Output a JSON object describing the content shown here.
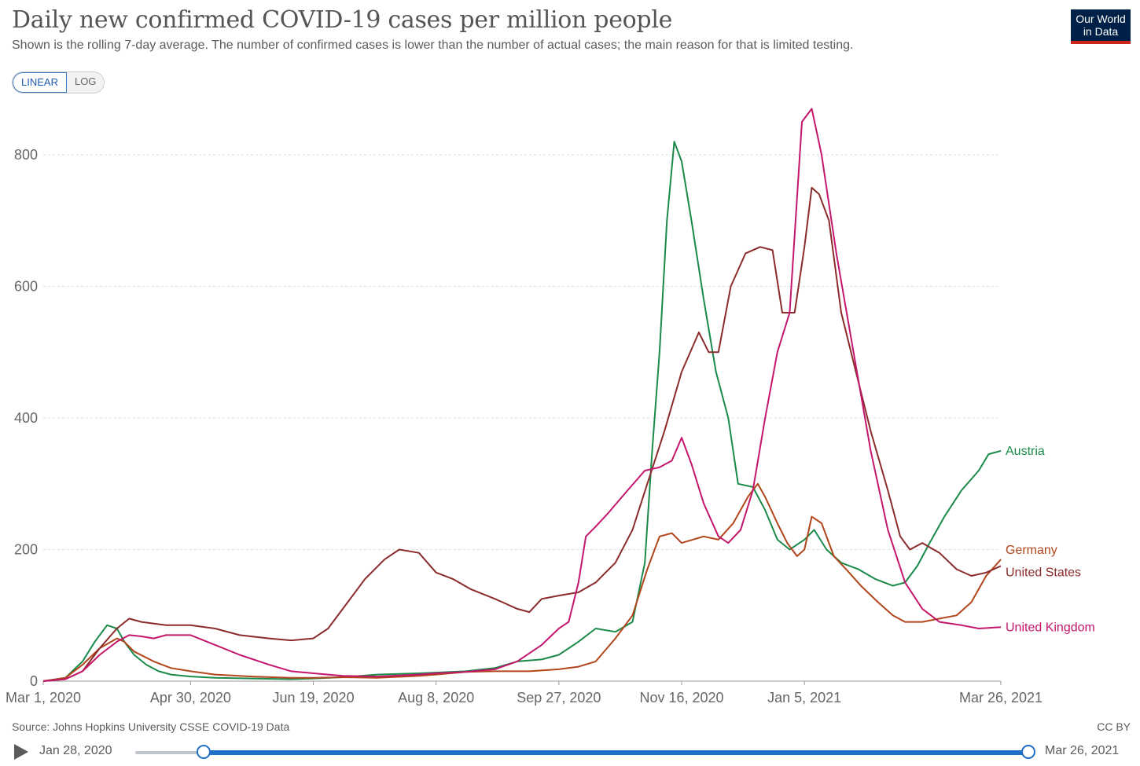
{
  "header": {
    "title": "Daily new confirmed COVID-19 cases per million people",
    "subtitle": "Shown is the rolling 7-day average. The number of confirmed cases is lower than the number of actual cases; the main reason for that is limited testing.",
    "logo_line1": "Our World",
    "logo_line2": "in Data"
  },
  "controls": {
    "linear_label": "LINEAR",
    "log_label": "LOG",
    "selected": "LINEAR"
  },
  "footer": {
    "source": "Source: Johns Hopkins University CSSE COVID-19 Data",
    "license": "CC BY"
  },
  "timeline": {
    "start_label": "Jan 28, 2020",
    "end_label": "Mar 26, 2021"
  },
  "chart_data": {
    "type": "line",
    "title": "Daily new confirmed COVID-19 cases per million people",
    "subtitle": "Shown is the rolling 7-day average. The number of confirmed cases is lower than the number of actual cases; the main reason for that is limited testing.",
    "xlabel": "",
    "ylabel": "",
    "xlim": [
      "2020-03-01",
      "2021-03-26"
    ],
    "ylim": [
      0,
      880
    ],
    "yticks": [
      0,
      200,
      400,
      600,
      800
    ],
    "xtick_labels": [
      {
        "date": "2020-03-01",
        "label": "Mar 1, 2020"
      },
      {
        "date": "2020-04-30",
        "label": "Apr 30, 2020"
      },
      {
        "date": "2020-06-19",
        "label": "Jun 19, 2020"
      },
      {
        "date": "2020-08-08",
        "label": "Aug 8, 2020"
      },
      {
        "date": "2020-09-27",
        "label": "Sep 27, 2020"
      },
      {
        "date": "2020-11-16",
        "label": "Nov 16, 2020"
      },
      {
        "date": "2021-01-05",
        "label": "Jan 5, 2021"
      },
      {
        "date": "2021-03-26",
        "label": "Mar 26, 2021"
      }
    ],
    "grid": "horizontal dashed",
    "legend": "labels at line ends (right)",
    "series": [
      {
        "name": "Austria",
        "color": "#1a8a4a",
        "points": [
          [
            "2020-03-01",
            0
          ],
          [
            "2020-03-10",
            5
          ],
          [
            "2020-03-17",
            30
          ],
          [
            "2020-03-22",
            60
          ],
          [
            "2020-03-27",
            85
          ],
          [
            "2020-03-31",
            80
          ],
          [
            "2020-04-03",
            60
          ],
          [
            "2020-04-07",
            40
          ],
          [
            "2020-04-12",
            25
          ],
          [
            "2020-04-17",
            15
          ],
          [
            "2020-04-22",
            10
          ],
          [
            "2020-04-30",
            7
          ],
          [
            "2020-05-10",
            5
          ],
          [
            "2020-05-25",
            4
          ],
          [
            "2020-06-10",
            3
          ],
          [
            "2020-06-19",
            4
          ],
          [
            "2020-07-01",
            6
          ],
          [
            "2020-07-15",
            10
          ],
          [
            "2020-08-01",
            12
          ],
          [
            "2020-08-08",
            13
          ],
          [
            "2020-08-20",
            15
          ],
          [
            "2020-09-01",
            20
          ],
          [
            "2020-09-10",
            30
          ],
          [
            "2020-09-20",
            33
          ],
          [
            "2020-09-27",
            40
          ],
          [
            "2020-10-05",
            60
          ],
          [
            "2020-10-12",
            80
          ],
          [
            "2020-10-20",
            75
          ],
          [
            "2020-10-27",
            90
          ],
          [
            "2020-11-01",
            180
          ],
          [
            "2020-11-04",
            350
          ],
          [
            "2020-11-07",
            500
          ],
          [
            "2020-11-10",
            700
          ],
          [
            "2020-11-13",
            820
          ],
          [
            "2020-11-16",
            790
          ],
          [
            "2020-11-20",
            700
          ],
          [
            "2020-11-25",
            580
          ],
          [
            "2020-11-30",
            470
          ],
          [
            "2020-12-05",
            400
          ],
          [
            "2020-12-09",
            300
          ],
          [
            "2020-12-15",
            295
          ],
          [
            "2020-12-20",
            260
          ],
          [
            "2020-12-25",
            215
          ],
          [
            "2020-12-30",
            200
          ],
          [
            "2021-01-05",
            215
          ],
          [
            "2021-01-09",
            230
          ],
          [
            "2021-01-14",
            200
          ],
          [
            "2021-01-20",
            180
          ],
          [
            "2021-01-27",
            170
          ],
          [
            "2021-02-03",
            155
          ],
          [
            "2021-02-10",
            145
          ],
          [
            "2021-02-15",
            150
          ],
          [
            "2021-02-20",
            175
          ],
          [
            "2021-02-25",
            210
          ],
          [
            "2021-03-03",
            250
          ],
          [
            "2021-03-10",
            290
          ],
          [
            "2021-03-17",
            320
          ],
          [
            "2021-03-21",
            345
          ],
          [
            "2021-03-26",
            350
          ]
        ]
      },
      {
        "name": "Germany",
        "color": "#b1451b",
        "points": [
          [
            "2020-03-01",
            0
          ],
          [
            "2020-03-10",
            5
          ],
          [
            "2020-03-17",
            25
          ],
          [
            "2020-03-24",
            50
          ],
          [
            "2020-03-31",
            65
          ],
          [
            "2020-04-03",
            60
          ],
          [
            "2020-04-07",
            45
          ],
          [
            "2020-04-15",
            30
          ],
          [
            "2020-04-22",
            20
          ],
          [
            "2020-04-30",
            15
          ],
          [
            "2020-05-10",
            10
          ],
          [
            "2020-05-25",
            7
          ],
          [
            "2020-06-10",
            5
          ],
          [
            "2020-06-19",
            5
          ],
          [
            "2020-07-01",
            6
          ],
          [
            "2020-07-15",
            5
          ],
          [
            "2020-08-01",
            8
          ],
          [
            "2020-08-08",
            10
          ],
          [
            "2020-08-20",
            14
          ],
          [
            "2020-09-01",
            15
          ],
          [
            "2020-09-15",
            15
          ],
          [
            "2020-09-27",
            18
          ],
          [
            "2020-10-05",
            22
          ],
          [
            "2020-10-12",
            30
          ],
          [
            "2020-10-20",
            65
          ],
          [
            "2020-10-27",
            100
          ],
          [
            "2020-11-02",
            170
          ],
          [
            "2020-11-07",
            220
          ],
          [
            "2020-11-12",
            225
          ],
          [
            "2020-11-16",
            210
          ],
          [
            "2020-11-25",
            220
          ],
          [
            "2020-12-01",
            215
          ],
          [
            "2020-12-07",
            240
          ],
          [
            "2020-12-13",
            280
          ],
          [
            "2020-12-17",
            300
          ],
          [
            "2020-12-20",
            280
          ],
          [
            "2020-12-25",
            240
          ],
          [
            "2020-12-29",
            210
          ],
          [
            "2021-01-02",
            190
          ],
          [
            "2021-01-05",
            200
          ],
          [
            "2021-01-08",
            250
          ],
          [
            "2021-01-12",
            240
          ],
          [
            "2021-01-17",
            190
          ],
          [
            "2021-01-22",
            170
          ],
          [
            "2021-01-28",
            145
          ],
          [
            "2021-02-04",
            120
          ],
          [
            "2021-02-10",
            100
          ],
          [
            "2021-02-15",
            90
          ],
          [
            "2021-02-22",
            90
          ],
          [
            "2021-03-01",
            95
          ],
          [
            "2021-03-08",
            100
          ],
          [
            "2021-03-14",
            120
          ],
          [
            "2021-03-20",
            160
          ],
          [
            "2021-03-26",
            185
          ]
        ]
      },
      {
        "name": "United States",
        "color": "#8b2b2b",
        "points": [
          [
            "2020-03-01",
            0
          ],
          [
            "2020-03-10",
            3
          ],
          [
            "2020-03-17",
            15
          ],
          [
            "2020-03-24",
            50
          ],
          [
            "2020-03-31",
            80
          ],
          [
            "2020-04-05",
            95
          ],
          [
            "2020-04-10",
            90
          ],
          [
            "2020-04-20",
            85
          ],
          [
            "2020-04-30",
            85
          ],
          [
            "2020-05-10",
            80
          ],
          [
            "2020-05-20",
            70
          ],
          [
            "2020-06-01",
            65
          ],
          [
            "2020-06-10",
            62
          ],
          [
            "2020-06-19",
            65
          ],
          [
            "2020-06-25",
            80
          ],
          [
            "2020-07-03",
            120
          ],
          [
            "2020-07-10",
            155
          ],
          [
            "2020-07-18",
            185
          ],
          [
            "2020-07-24",
            200
          ],
          [
            "2020-08-01",
            195
          ],
          [
            "2020-08-08",
            165
          ],
          [
            "2020-08-15",
            155
          ],
          [
            "2020-08-22",
            140
          ],
          [
            "2020-09-01",
            125
          ],
          [
            "2020-09-10",
            110
          ],
          [
            "2020-09-15",
            105
          ],
          [
            "2020-09-20",
            125
          ],
          [
            "2020-09-27",
            130
          ],
          [
            "2020-10-05",
            135
          ],
          [
            "2020-10-12",
            150
          ],
          [
            "2020-10-20",
            180
          ],
          [
            "2020-10-27",
            230
          ],
          [
            "2020-11-02",
            300
          ],
          [
            "2020-11-09",
            380
          ],
          [
            "2020-11-16",
            470
          ],
          [
            "2020-11-23",
            530
          ],
          [
            "2020-11-27",
            500
          ],
          [
            "2020-12-01",
            500
          ],
          [
            "2020-12-06",
            600
          ],
          [
            "2020-12-12",
            650
          ],
          [
            "2020-12-18",
            660
          ],
          [
            "2020-12-23",
            655
          ],
          [
            "2020-12-27",
            560
          ],
          [
            "2021-01-01",
            560
          ],
          [
            "2021-01-05",
            660
          ],
          [
            "2021-01-08",
            750
          ],
          [
            "2021-01-11",
            740
          ],
          [
            "2021-01-15",
            700
          ],
          [
            "2021-01-20",
            560
          ],
          [
            "2021-01-26",
            470
          ],
          [
            "2021-02-01",
            380
          ],
          [
            "2021-02-08",
            290
          ],
          [
            "2021-02-13",
            220
          ],
          [
            "2021-02-17",
            200
          ],
          [
            "2021-02-22",
            210
          ],
          [
            "2021-03-01",
            195
          ],
          [
            "2021-03-08",
            170
          ],
          [
            "2021-03-14",
            160
          ],
          [
            "2021-03-20",
            165
          ],
          [
            "2021-03-26",
            175
          ]
        ]
      },
      {
        "name": "United Kingdom",
        "color": "#c4176c",
        "points": [
          [
            "2020-03-01",
            0
          ],
          [
            "2020-03-10",
            3
          ],
          [
            "2020-03-17",
            15
          ],
          [
            "2020-03-24",
            40
          ],
          [
            "2020-03-31",
            60
          ],
          [
            "2020-04-05",
            70
          ],
          [
            "2020-04-10",
            68
          ],
          [
            "2020-04-15",
            65
          ],
          [
            "2020-04-20",
            70
          ],
          [
            "2020-04-30",
            70
          ],
          [
            "2020-05-10",
            55
          ],
          [
            "2020-05-20",
            40
          ],
          [
            "2020-06-01",
            25
          ],
          [
            "2020-06-10",
            15
          ],
          [
            "2020-06-19",
            12
          ],
          [
            "2020-07-01",
            8
          ],
          [
            "2020-07-15",
            7
          ],
          [
            "2020-08-01",
            10
          ],
          [
            "2020-08-08",
            12
          ],
          [
            "2020-08-20",
            14
          ],
          [
            "2020-09-01",
            18
          ],
          [
            "2020-09-10",
            30
          ],
          [
            "2020-09-20",
            55
          ],
          [
            "2020-09-27",
            80
          ],
          [
            "2020-10-01",
            90
          ],
          [
            "2020-10-05",
            150
          ],
          [
            "2020-10-08",
            220
          ],
          [
            "2020-10-12",
            235
          ],
          [
            "2020-10-17",
            255
          ],
          [
            "2020-10-25",
            290
          ],
          [
            "2020-11-01",
            320
          ],
          [
            "2020-11-07",
            325
          ],
          [
            "2020-11-12",
            335
          ],
          [
            "2020-11-16",
            370
          ],
          [
            "2020-11-20",
            330
          ],
          [
            "2020-11-25",
            270
          ],
          [
            "2020-12-01",
            220
          ],
          [
            "2020-12-05",
            210
          ],
          [
            "2020-12-10",
            230
          ],
          [
            "2020-12-15",
            290
          ],
          [
            "2020-12-20",
            400
          ],
          [
            "2020-12-25",
            500
          ],
          [
            "2020-12-30",
            560
          ],
          [
            "2021-01-04",
            850
          ],
          [
            "2021-01-08",
            870
          ],
          [
            "2021-01-12",
            800
          ],
          [
            "2021-01-18",
            650
          ],
          [
            "2021-01-25",
            500
          ],
          [
            "2021-02-01",
            350
          ],
          [
            "2021-02-08",
            230
          ],
          [
            "2021-02-15",
            150
          ],
          [
            "2021-02-22",
            110
          ],
          [
            "2021-03-01",
            90
          ],
          [
            "2021-03-10",
            85
          ],
          [
            "2021-03-17",
            80
          ],
          [
            "2021-03-26",
            82
          ]
        ]
      }
    ]
  }
}
